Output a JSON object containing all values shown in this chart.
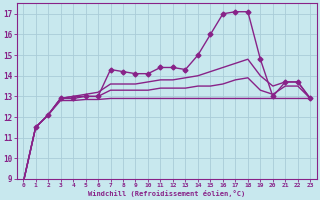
{
  "bg_color": "#c8e8ee",
  "grid_color": "#aaccd8",
  "line_color": "#882288",
  "xlabel": "Windchill (Refroidissement éolien,°C)",
  "xlim": [
    -0.5,
    23.5
  ],
  "ylim": [
    9,
    17.5
  ],
  "xticks": [
    0,
    1,
    2,
    3,
    4,
    5,
    6,
    7,
    8,
    9,
    10,
    11,
    12,
    13,
    14,
    15,
    16,
    17,
    18,
    19,
    20,
    21,
    22,
    23
  ],
  "yticks": [
    9,
    10,
    11,
    12,
    13,
    14,
    15,
    16,
    17
  ],
  "series": [
    {
      "x": [
        0,
        1,
        2,
        3,
        4,
        5,
        6,
        7,
        8,
        9,
        10,
        11,
        12,
        13,
        14,
        15,
        16,
        17,
        18,
        19,
        20,
        21,
        22,
        23
      ],
      "y": [
        8.8,
        11.5,
        12.1,
        12.9,
        12.9,
        13.0,
        13.0,
        14.3,
        14.2,
        14.1,
        14.1,
        14.4,
        14.4,
        14.3,
        15.0,
        16.0,
        17.0,
        17.1,
        17.1,
        14.8,
        13.0,
        13.7,
        13.7,
        12.9
      ],
      "marker": "D",
      "ms": 2.5,
      "lw": 1.0
    },
    {
      "x": [
        0,
        1,
        2,
        3,
        4,
        5,
        6,
        7,
        8,
        9,
        10,
        11,
        12,
        13,
        14,
        15,
        16,
        17,
        18,
        19,
        20,
        21,
        22,
        23
      ],
      "y": [
        8.8,
        11.5,
        12.1,
        12.9,
        13.0,
        13.1,
        13.2,
        13.6,
        13.6,
        13.6,
        13.7,
        13.8,
        13.8,
        13.9,
        14.0,
        14.2,
        14.4,
        14.6,
        14.8,
        14.0,
        13.5,
        13.7,
        13.7,
        12.9
      ],
      "marker": null,
      "ms": 0,
      "lw": 1.0
    },
    {
      "x": [
        0,
        1,
        2,
        3,
        4,
        5,
        6,
        7,
        8,
        9,
        10,
        11,
        12,
        13,
        14,
        15,
        16,
        17,
        18,
        19,
        20,
        21,
        22,
        23
      ],
      "y": [
        8.8,
        11.5,
        12.1,
        12.9,
        13.0,
        13.0,
        13.0,
        13.3,
        13.3,
        13.3,
        13.3,
        13.4,
        13.4,
        13.4,
        13.5,
        13.5,
        13.6,
        13.8,
        13.9,
        13.3,
        13.1,
        13.5,
        13.5,
        12.9
      ],
      "marker": null,
      "ms": 0,
      "lw": 1.0
    },
    {
      "x": [
        0,
        1,
        2,
        3,
        4,
        5,
        6,
        7,
        8,
        9,
        10,
        11,
        12,
        13,
        14,
        15,
        16,
        17,
        18,
        19,
        20,
        21,
        22,
        23
      ],
      "y": [
        8.8,
        11.5,
        12.1,
        12.8,
        12.8,
        12.85,
        12.85,
        12.9,
        12.9,
        12.9,
        12.9,
        12.9,
        12.9,
        12.9,
        12.9,
        12.9,
        12.9,
        12.9,
        12.9,
        12.9,
        12.9,
        12.9,
        12.9,
        12.9
      ],
      "marker": null,
      "ms": 0,
      "lw": 1.0
    }
  ]
}
